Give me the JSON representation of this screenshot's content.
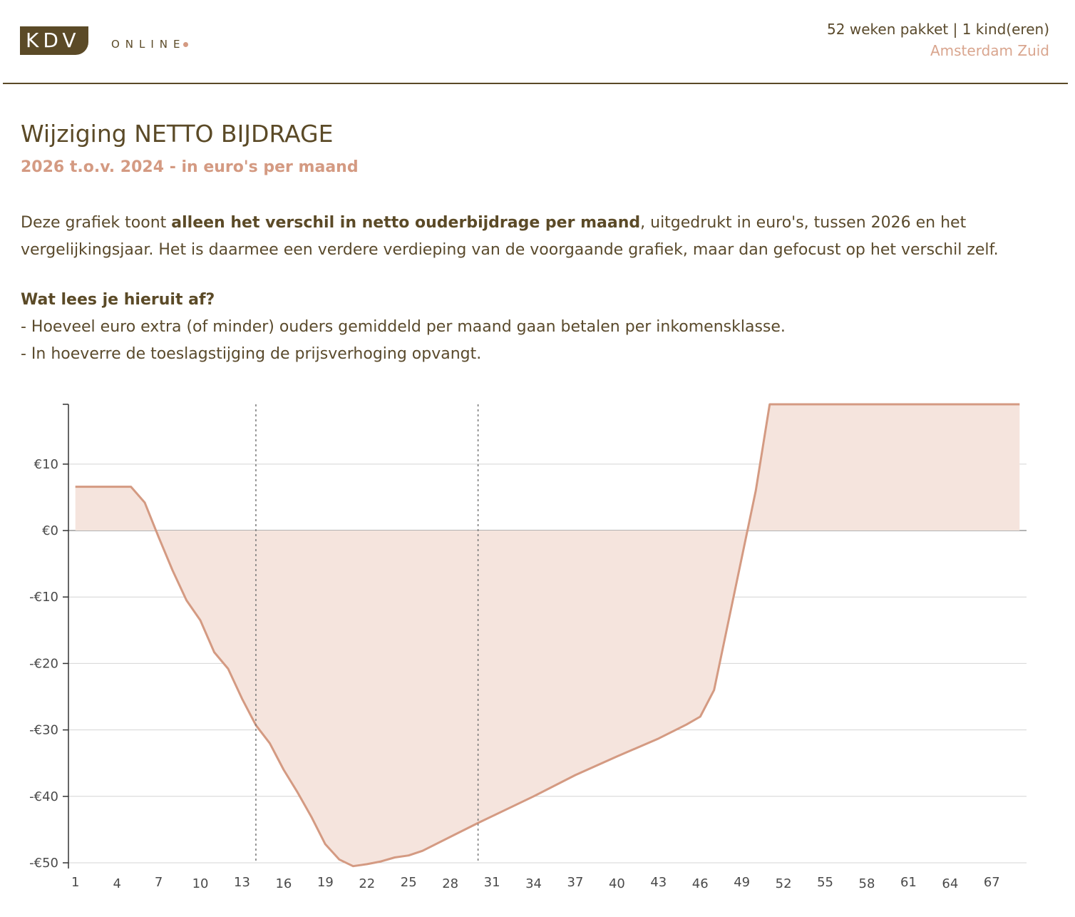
{
  "header": {
    "logo_text": "KDV",
    "logo_subtext": "ONLINE",
    "package_text": "52 weken pakket | 1  kind(eren)",
    "location": "Amsterdam Zuid"
  },
  "colors": {
    "brand": "#5b4a27",
    "accent": "#d49a82",
    "fill": "#f5e4dd"
  },
  "page": {
    "title": "Wijziging NETTO BIJDRAGE",
    "subtitle": "2026 t.o.v. 2024 - in euro's per maand",
    "desc_part1": "Deze grafiek toont ",
    "desc_bold": "alleen het verschil in netto ouderbijdrage per maand",
    "desc_part2": ", uitgedrukt in euro's, tussen 2026 en het vergelijkingsjaar. Het is daarmee een verdere verdieping van de voorgaande grafiek, maar dan gefocust op het verschil zelf.",
    "question_title": "Wat lees je hieruit af?",
    "bullets": [
      "- Hoeveel euro extra (of minder) ouders gemiddeld per maand gaan betalen per inkomensklasse.",
      "- In hoeverre de toeslagstijging de prijsverhoging opvangt."
    ]
  },
  "chart_data": {
    "type": "area",
    "title": "",
    "xlabel": "",
    "ylabel": "",
    "x_ticks": [
      1,
      4,
      7,
      10,
      13,
      16,
      19,
      22,
      25,
      28,
      31,
      34,
      37,
      40,
      43,
      46,
      49,
      52,
      55,
      58,
      61,
      64,
      67
    ],
    "y_ticks": [
      10,
      0,
      -10,
      -20,
      -30,
      -40,
      -50
    ],
    "y_tick_labels": [
      "€10",
      "€0",
      "-€10",
      "-€20",
      "-€30",
      "-€40",
      "-€50"
    ],
    "xlim": [
      0.5,
      69.5
    ],
    "ylim": [
      -50,
      19
    ],
    "grid": "horizontal",
    "vertical_markers": [
      14,
      30
    ],
    "x": [
      1,
      5,
      6,
      7,
      8,
      9,
      10,
      11,
      12,
      13,
      14,
      15,
      16,
      17,
      18,
      19,
      20,
      21,
      22,
      23,
      24,
      25,
      26,
      30,
      31,
      34,
      37,
      40,
      43,
      45,
      46,
      47,
      48,
      49,
      50,
      51,
      69
    ],
    "values": [
      6.6,
      6.6,
      4.2,
      -1.0,
      -6.0,
      -10.5,
      -13.5,
      -18.3,
      -20.8,
      -25.3,
      -29.3,
      -32.0,
      -36.0,
      -39.4,
      -43.1,
      -47.2,
      -49.5,
      -50.5,
      -50.2,
      -49.8,
      -49.2,
      -48.9,
      -48.2,
      -44.0,
      -43.0,
      -40.0,
      -36.8,
      -34.0,
      -31.3,
      -29.2,
      -28.0,
      -24.0,
      -14.0,
      -4.0,
      6.0,
      19.0,
      19.0
    ]
  }
}
